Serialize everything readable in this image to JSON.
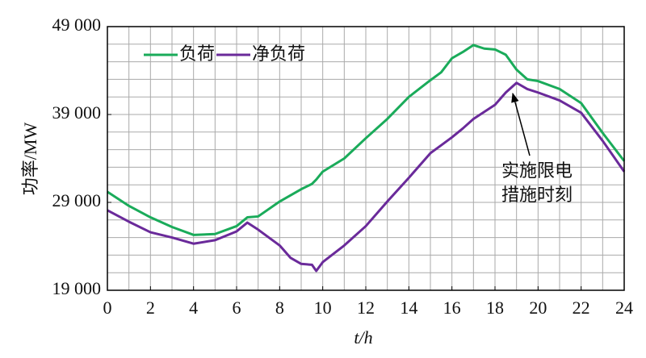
{
  "chart_data": {
    "type": "line",
    "xlabel": "t/h",
    "ylabel": "功率/MW",
    "x": [
      0,
      1,
      2,
      3,
      4,
      5,
      6,
      6.5,
      7,
      8,
      8.5,
      9,
      9.5,
      9.7,
      10,
      11,
      12,
      13,
      14,
      15,
      15.5,
      16,
      16.5,
      17,
      17.5,
      18,
      18.5,
      19,
      19.5,
      20,
      21,
      22,
      23,
      24
    ],
    "series": [
      {
        "name": "负荷",
        "color": "#1aab5a",
        "values": [
          30200,
          28600,
          27300,
          26200,
          25300,
          25400,
          26300,
          27300,
          27400,
          29100,
          29800,
          30500,
          31100,
          31600,
          32500,
          34000,
          36300,
          38500,
          41000,
          42900,
          43800,
          45400,
          46100,
          46900,
          46500,
          46400,
          45800,
          44100,
          43000,
          42800,
          41900,
          40300,
          36900,
          33700
        ]
      },
      {
        "name": "净负荷",
        "color": "#6a2a9a",
        "values": [
          28100,
          26800,
          25600,
          25000,
          24300,
          24700,
          25700,
          26700,
          25900,
          24100,
          22700,
          22000,
          21900,
          21200,
          22200,
          24100,
          26300,
          29100,
          31800,
          34600,
          35500,
          36400,
          37400,
          38500,
          39300,
          40100,
          41500,
          42600,
          41900,
          41500,
          40600,
          39200,
          36000,
          32500
        ]
      }
    ],
    "xlim": [
      0,
      24
    ],
    "xticks": [
      0,
      2,
      4,
      6,
      8,
      10,
      12,
      14,
      16,
      18,
      20,
      22,
      24
    ],
    "xgrid": [
      1,
      2,
      3,
      4,
      5,
      6,
      7,
      8,
      9,
      10,
      11,
      12,
      13,
      14,
      15,
      16,
      17,
      18,
      19,
      20,
      21,
      22,
      23
    ],
    "ylim": [
      19000,
      49000
    ],
    "yticks": [
      {
        "value": 19000,
        "label": "19 000"
      },
      {
        "value": 29000,
        "label": "29 000"
      },
      {
        "value": 39000,
        "label": "39 000"
      },
      {
        "value": 49000,
        "label": "49 000"
      }
    ],
    "ygrid": [
      21000,
      23000,
      25000,
      27000,
      29000,
      31000,
      33000,
      35000,
      37000,
      39000,
      41000,
      43000,
      45000,
      47000
    ],
    "grid": true,
    "legend": "upper left",
    "annotation": [
      "实施限电",
      "措施时刻"
    ]
  }
}
